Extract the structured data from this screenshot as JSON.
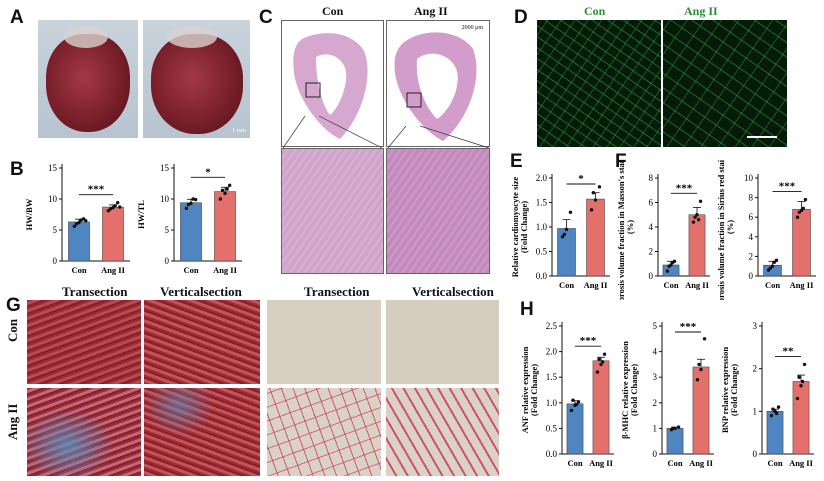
{
  "panels": {
    "A": "A",
    "B": "B",
    "C": "C",
    "D": "D",
    "E": "E",
    "F": "F",
    "G": "G",
    "H": "H"
  },
  "labels": {
    "con": "Con",
    "ang": "Ang II",
    "c_scale": "2000 μm",
    "a_scale": "1 mm",
    "transection": "Transection",
    "verticalsection": "Verticalsection"
  },
  "colors": {
    "con": "#4f86c2",
    "ang": "#e4706c",
    "axis": "#111111"
  },
  "chart_data": [
    {
      "id": "B1",
      "type": "bar",
      "categories": [
        "Con",
        "Ang II"
      ],
      "values": [
        6.3,
        8.7
      ],
      "errors": [
        0.45,
        0.35
      ],
      "points": [
        [
          5.6,
          6.2,
          6.8,
          6.0,
          6.6,
          6.5
        ],
        [
          8.1,
          8.6,
          9.4,
          8.4,
          8.9,
          8.7
        ]
      ],
      "ylabel": "HW/BW",
      "ylim": [
        0,
        15
      ],
      "yticks": [
        0,
        5,
        10,
        15
      ],
      "sig": "***"
    },
    {
      "id": "B2",
      "type": "bar",
      "categories": [
        "Con",
        "Ang II"
      ],
      "values": [
        9.4,
        11.2
      ],
      "errors": [
        0.55,
        0.7
      ],
      "points": [
        [
          8.5,
          9.3,
          9.9,
          9.1,
          10.0
        ],
        [
          10.0,
          10.9,
          12.2,
          11.4,
          11.6
        ]
      ],
      "ylabel": "HW/TL",
      "ylim": [
        0,
        15
      ],
      "yticks": [
        0,
        5,
        10,
        15
      ],
      "sig": "*"
    },
    {
      "id": "E",
      "type": "bar",
      "categories": [
        "Con",
        "Ang II"
      ],
      "values": [
        0.97,
        1.57
      ],
      "errors": [
        0.18,
        0.13
      ],
      "points": [
        [
          0.8,
          0.95,
          1.3,
          0.85
        ],
        [
          1.35,
          1.55,
          1.82,
          1.7
        ]
      ],
      "ylabel": "Relative cardiomyocyte size (Fold Change)",
      "ylim": [
        0,
        2.0
      ],
      "yticks": [
        0.0,
        0.5,
        1.0,
        1.5,
        2.0
      ],
      "sig": "*"
    },
    {
      "id": "F1",
      "type": "bar",
      "categories": [
        "Con",
        "Ang II"
      ],
      "values": [
        0.9,
        5.0
      ],
      "errors": [
        0.3,
        0.6
      ],
      "points": [
        [
          0.4,
          0.9,
          1.2,
          0.8,
          1.1
        ],
        [
          4.4,
          5.0,
          6.1,
          4.8,
          4.6
        ]
      ],
      "ylabel": "Fibrosis volume fraction in Masson's staining (%)",
      "ylim": [
        0,
        8
      ],
      "yticks": [
        0,
        2,
        4,
        6,
        8
      ],
      "sig": "***"
    },
    {
      "id": "F2",
      "type": "bar",
      "categories": [
        "Con",
        "Ang II"
      ],
      "values": [
        1.1,
        6.8
      ],
      "errors": [
        0.4,
        0.8
      ],
      "points": [
        [
          0.6,
          1.0,
          1.6,
          0.8,
          1.4
        ],
        [
          6.0,
          6.7,
          7.8,
          6.5,
          6.9
        ]
      ],
      "ylabel": "Fibrosis volume fraction in Sirius red staining (%)",
      "ylim": [
        0,
        10
      ],
      "yticks": [
        0,
        2,
        4,
        6,
        8,
        10
      ],
      "sig": "***"
    },
    {
      "id": "H1",
      "type": "bar",
      "categories": [
        "Con",
        "Ang II"
      ],
      "values": [
        0.98,
        1.82
      ],
      "errors": [
        0.06,
        0.07
      ],
      "points": [
        [
          0.85,
          0.95,
          1.02,
          1.05,
          0.97
        ],
        [
          1.6,
          1.75,
          1.95,
          1.85,
          1.8
        ]
      ],
      "ylabel": "ANF relative expression (Fold Change)",
      "ylim": [
        0,
        2.5
      ],
      "yticks": [
        0.0,
        0.5,
        1.0,
        1.5,
        2.0,
        2.5
      ],
      "sig": "***"
    },
    {
      "id": "H2",
      "type": "bar",
      "categories": [
        "Con",
        "Ang II"
      ],
      "values": [
        1.0,
        3.4
      ],
      "errors": [
        0.05,
        0.3
      ],
      "points": [
        [
          0.95,
          1.0,
          1.05,
          1.0
        ],
        [
          2.9,
          3.3,
          4.5,
          3.5
        ]
      ],
      "ylabel": "β-MHC relative expression (Fold Change)",
      "ylim": [
        0,
        5
      ],
      "yticks": [
        0,
        1,
        2,
        3,
        4,
        5
      ],
      "sig": "***"
    },
    {
      "id": "H3",
      "type": "bar",
      "categories": [
        "Con",
        "Ang II"
      ],
      "values": [
        1.0,
        1.7
      ],
      "errors": [
        0.05,
        0.15
      ],
      "points": [
        [
          0.9,
          1.0,
          1.1,
          1.05,
          0.95
        ],
        [
          1.3,
          1.6,
          2.1,
          1.8,
          1.7
        ]
      ],
      "ylabel": "BNP relative expression (Fold Change)",
      "ylim": [
        0,
        3
      ],
      "yticks": [
        0,
        1,
        2,
        3
      ],
      "sig": "**"
    }
  ]
}
